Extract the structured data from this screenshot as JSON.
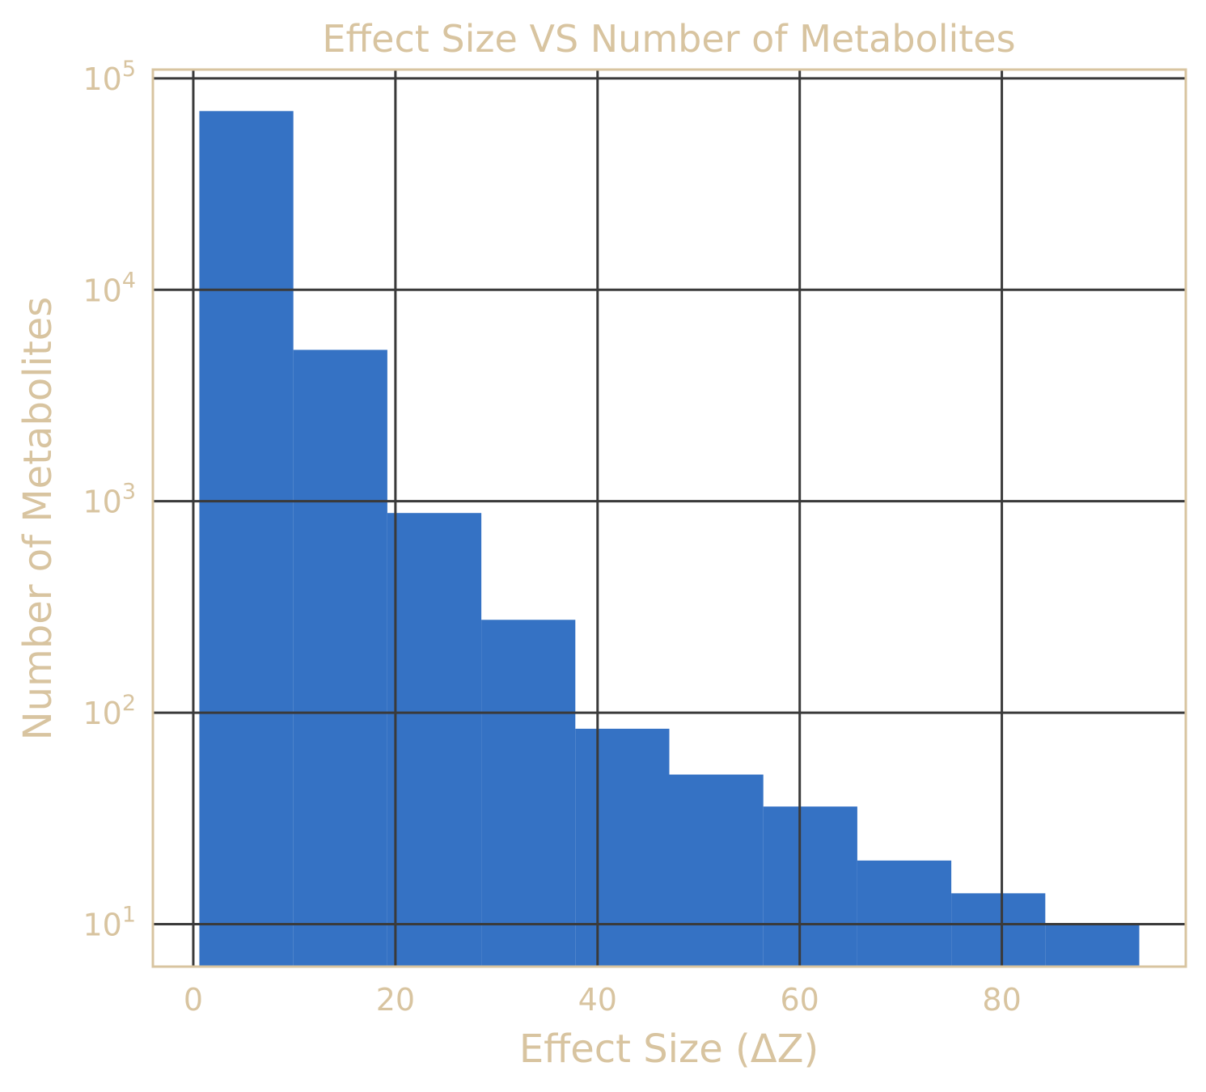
{
  "colors": {
    "text": "#d8c4a0",
    "bars": "#3572c4",
    "grid": "#3a3a3a",
    "frame": "#d8c4a0",
    "background": "#ffffff"
  },
  "chart_data": {
    "type": "bar",
    "title": "Effect Size VS Number of Metabolites",
    "xlabel": "Effect Size (ΔZ)",
    "ylabel": "Number of Metabolites",
    "yscale": "log",
    "grid": true,
    "xlim": [
      -4.0,
      98.2
    ],
    "ylim": [
      6.3,
      110000
    ],
    "x_ticks": [
      0,
      20,
      40,
      60,
      80
    ],
    "y_ticks": [
      {
        "value": 10,
        "base": "10",
        "exp": "1"
      },
      {
        "value": 100,
        "base": "10",
        "exp": "2"
      },
      {
        "value": 1000,
        "base": "10",
        "exp": "3"
      },
      {
        "value": 10000,
        "base": "10",
        "exp": "4"
      },
      {
        "value": 100000,
        "base": "10",
        "exp": "5"
      }
    ],
    "bins": [
      {
        "x0": 0.6,
        "x1": 9.9,
        "count": 70000
      },
      {
        "x0": 9.9,
        "x1": 19.2,
        "count": 5200
      },
      {
        "x0": 19.2,
        "x1": 28.5,
        "count": 880
      },
      {
        "x0": 28.5,
        "x1": 37.8,
        "count": 275
      },
      {
        "x0": 37.8,
        "x1": 47.1,
        "count": 84
      },
      {
        "x0": 47.1,
        "x1": 56.4,
        "count": 51
      },
      {
        "x0": 56.4,
        "x1": 65.7,
        "count": 36
      },
      {
        "x0": 65.7,
        "x1": 75.0,
        "count": 20
      },
      {
        "x0": 75.0,
        "x1": 84.3,
        "count": 14
      },
      {
        "x0": 84.3,
        "x1": 93.6,
        "count": 10
      }
    ]
  }
}
